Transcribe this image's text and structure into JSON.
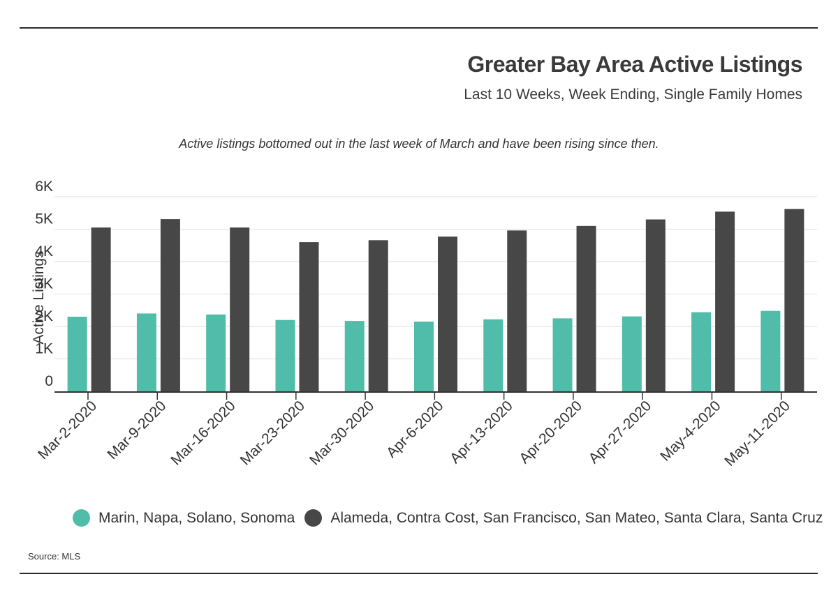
{
  "header": {
    "title": "Greater Bay Area Active Listings",
    "subtitle": "Last 10 Weeks, Week Ending, Single Family Homes"
  },
  "annotation": "Active listings bottomed out in the last week of March and have been rising since then.",
  "source": "Source: MLS",
  "colors": {
    "series1": "#4fbda9",
    "series2": "#474747",
    "grid": "#dedede",
    "axis": "#333333"
  },
  "legend": {
    "items": [
      {
        "label": "Marin, Napa, Solano, Sonoma"
      },
      {
        "label": "Alameda, Contra Cost, San Francisco, San Mateo, Santa Clara, Santa Cruz"
      }
    ]
  },
  "chart_data": {
    "type": "bar",
    "ylabel": "Active Listings",
    "xlabel": "",
    "ylim": [
      0,
      6000
    ],
    "yticks": [
      0,
      1000,
      2000,
      3000,
      4000,
      5000,
      6000
    ],
    "ytick_labels": [
      "0",
      "1K",
      "2K",
      "3K",
      "4K",
      "5K",
      "6K"
    ],
    "grid": true,
    "legend_position": "bottom",
    "categories": [
      "Mar-2-2020",
      "Mar-9-2020",
      "Mar-16-2020",
      "Mar-23-2020",
      "Mar-30-2020",
      "Apr-6-2020",
      "Apr-13-2020",
      "Apr-20-2020",
      "Apr-27-2020",
      "May-4-2020",
      "May-11-2020"
    ],
    "series": [
      {
        "name": "Marin, Napa, Solano, Sonoma",
        "values": [
          2300,
          2400,
          2370,
          2200,
          2170,
          2150,
          2220,
          2250,
          2310,
          2440,
          2480
        ]
      },
      {
        "name": "Alameda, Contra Cost, San Francisco, San Mateo, Santa Clara, Santa Cruz",
        "values": [
          5050,
          5310,
          5050,
          4600,
          4660,
          4770,
          4960,
          5100,
          5300,
          5540,
          5620
        ]
      }
    ]
  }
}
